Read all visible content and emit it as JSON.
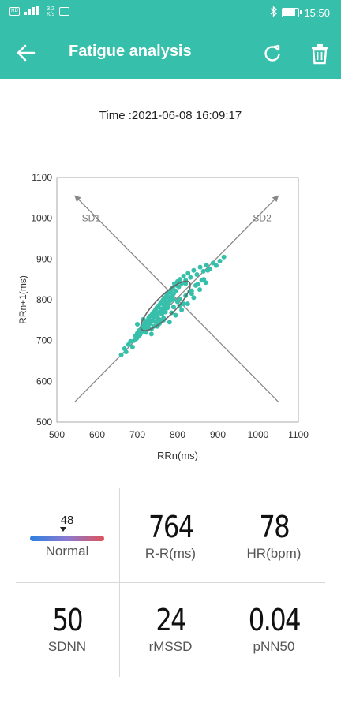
{
  "status_bar": {
    "speed_top": "3.2",
    "speed_bottom": "K/s",
    "clock": "15:50",
    "battery_level": 0.8
  },
  "app_bar": {
    "title": "Fatigue analysis"
  },
  "time_text": "Time :2021-06-08 16:09:17",
  "chart_data": {
    "type": "scatter",
    "xlabel": "RRn(ms)",
    "ylabel": "RRn+1(ms)",
    "xlim": [
      500,
      1100
    ],
    "ylim": [
      500,
      1100
    ],
    "xticks": [
      "500",
      "600",
      "700",
      "800",
      "900",
      "1000",
      "1100"
    ],
    "yticks": [
      "500",
      "600",
      "700",
      "800",
      "900",
      "1000",
      "1100"
    ],
    "axis_annotations": [
      {
        "text": "SD1",
        "from": [
          1050,
          550
        ],
        "to": [
          545,
          1055
        ]
      },
      {
        "text": "SD2",
        "from": [
          545,
          550
        ],
        "to": [
          1050,
          1055
        ]
      }
    ],
    "ellipse": {
      "cx": 770,
      "cy": 785,
      "sd1": 28,
      "sd2": 95
    },
    "point_color": "#36bfaa",
    "x": [
      660,
      668,
      672,
      678,
      683,
      688,
      692,
      695,
      698,
      700,
      703,
      705,
      707,
      710,
      712,
      714,
      716,
      718,
      720,
      722,
      724,
      726,
      728,
      730,
      732,
      734,
      735,
      737,
      738,
      740,
      741,
      743,
      745,
      746,
      748,
      750,
      751,
      752,
      754,
      755,
      757,
      758,
      760,
      761,
      762,
      764,
      765,
      766,
      768,
      770,
      772,
      773,
      775,
      777,
      778,
      780,
      782,
      784,
      786,
      788,
      790,
      792,
      795,
      798,
      800,
      803,
      806,
      810,
      815,
      820,
      826,
      832,
      840,
      848,
      856,
      864,
      872,
      880,
      888,
      896,
      905,
      915,
      700,
      715,
      730,
      745,
      760,
      775,
      790,
      805,
      820,
      835,
      850,
      865,
      710,
      725,
      740,
      755,
      770,
      785,
      800,
      815,
      830,
      845,
      860,
      875,
      735,
      750,
      765,
      780,
      795,
      810,
      825,
      840,
      855,
      870,
      745,
      760,
      775,
      790,
      805,
      820,
      835
    ],
    "y": [
      665,
      680,
      672,
      690,
      698,
      684,
      700,
      712,
      705,
      718,
      710,
      725,
      715,
      730,
      722,
      738,
      728,
      742,
      735,
      720,
      748,
      732,
      755,
      740,
      760,
      745,
      728,
      765,
      750,
      770,
      735,
      758,
      775,
      745,
      780,
      760,
      738,
      785,
      752,
      770,
      790,
      748,
      795,
      765,
      778,
      800,
      755,
      788,
      805,
      770,
      795,
      812,
      780,
      805,
      790,
      818,
      798,
      825,
      808,
      830,
      815,
      840,
      822,
      835,
      845,
      832,
      850,
      840,
      858,
      848,
      865,
      855,
      872,
      862,
      880,
      870,
      885,
      876,
      890,
      884,
      895,
      905,
      740,
      752,
      748,
      766,
      772,
      790,
      782,
      802,
      810,
      822,
      838,
      850,
      726,
      744,
      758,
      742,
      780,
      768,
      795,
      790,
      820,
      835,
      848,
      872,
      716,
      735,
      750,
      745,
      762,
      775,
      790,
      805,
      825,
      842,
      765,
      778,
      808,
      800,
      785,
      840,
      815
    ]
  },
  "stats": {
    "gauge_value": "48",
    "gauge_fraction": 0.45,
    "gauge_label": "Normal",
    "rr_value": "764",
    "rr_label": "R-R(ms)",
    "hr_value": "78",
    "hr_label": "HR(bpm)",
    "sdnn_value": "50",
    "sdnn_label": "SDNN",
    "rmssd_value": "24",
    "rmssd_label": "rMSSD",
    "pnn50_value": "0.04",
    "pnn50_label": "pNN50"
  }
}
